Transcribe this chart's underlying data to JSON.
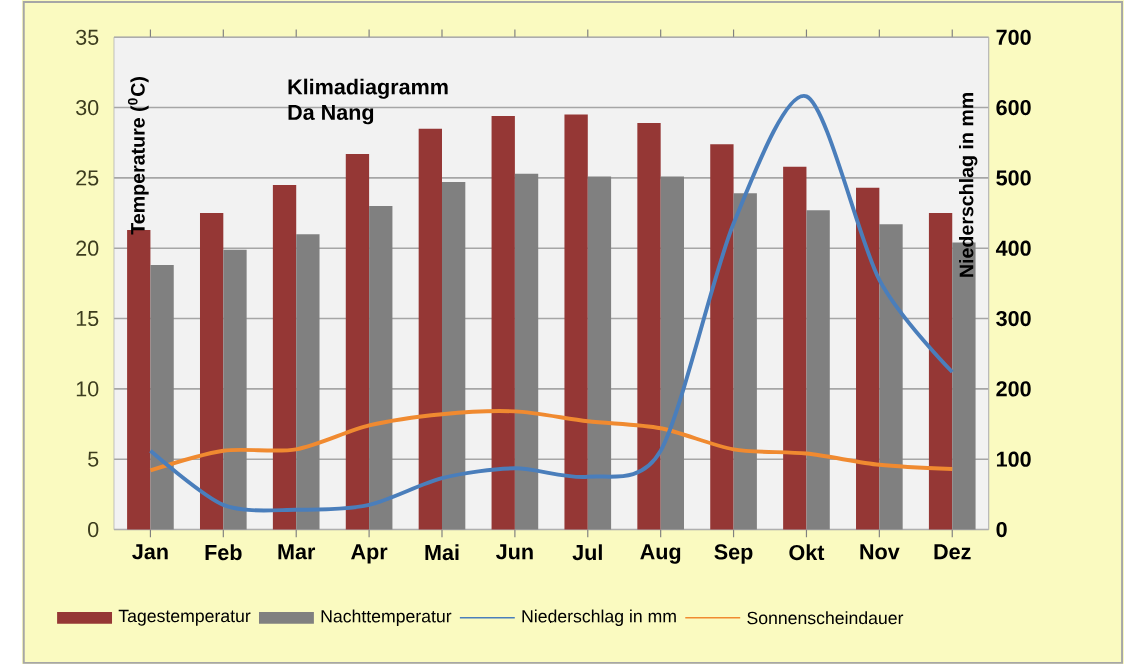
{
  "chart_data": {
    "type": "bar",
    "title": "Klimadiagramm",
    "subtitle": "Da Nang",
    "ylabel": "Temperature ($^{0}$C)",
    "y2label": "Niederschlag in mm",
    "categories": [
      "Jan",
      "Feb",
      "Mar",
      "Apr",
      "Mai",
      "Jun",
      "Jul",
      "Aug",
      "Sep",
      "Okt",
      "Nov",
      "Dez"
    ],
    "series": [
      {
        "name": "Tagestemperatur",
        "color": "#953735",
        "values": [
          21.3,
          22.5,
          24.5,
          26.7,
          28.5,
          29.4,
          29.5,
          28.9,
          27.4,
          25.8,
          24.3,
          22.5
        ]
      },
      {
        "name": "Nachttemperatur",
        "color": "#808080",
        "values": [
          18.8,
          19.9,
          21.0,
          23.0,
          24.7,
          25.3,
          25.1,
          25.1,
          23.9,
          22.7,
          21.7,
          20.4
        ]
      },
      {
        "name": "Niederschlag in mm",
        "type": "line",
        "axis": "y2",
        "color": "#4a7ebb",
        "values": [
          112,
          35,
          28,
          35,
          73,
          87,
          75,
          112,
          435,
          616,
          355,
          224
        ]
      },
      {
        "name": "Sonnenscheindauer",
        "type": "line",
        "color": "#f08a30",
        "values": [
          4.2,
          5.6,
          5.7,
          7.4,
          8.2,
          8.4,
          7.7,
          7.2,
          5.7,
          5.4,
          4.6,
          4.3
        ]
      }
    ],
    "ylim": [
      0,
      35
    ],
    "yticks": [
      0,
      5,
      10,
      15,
      20,
      25,
      30,
      35
    ],
    "y2lim": [
      0,
      700
    ],
    "y2ticks": [
      0,
      100,
      200,
      300,
      400,
      500,
      600,
      700
    ],
    "grid": "y",
    "legend": "bottom"
  }
}
